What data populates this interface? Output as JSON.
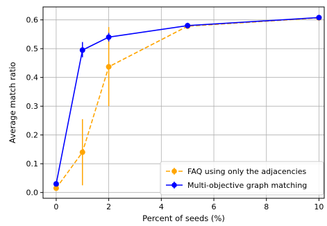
{
  "chart_data": {
    "type": "line",
    "title": "",
    "xlabel": "Percent of seeds (%)",
    "ylabel": "Average match ratio",
    "xlim": [
      -0.5,
      10.2
    ],
    "ylim": [
      -0.02,
      0.645
    ],
    "xticks": [
      0,
      2,
      4,
      6,
      8,
      10
    ],
    "yticks": [
      0.0,
      0.1,
      0.2,
      0.3,
      0.4,
      0.5,
      0.6
    ],
    "xtick_labels": [
      "0",
      "2",
      "4",
      "6",
      "8",
      "10"
    ],
    "ytick_labels": [
      "0.0",
      "0.1",
      "0.2",
      "0.3",
      "0.4",
      "0.5",
      "0.6"
    ],
    "grid": true,
    "legend_position": "bottom-right",
    "series": [
      {
        "name": "FAQ using only the adjacencies",
        "color": "#ffa500",
        "line_style": "dashed",
        "marker": "circle",
        "x": [
          0,
          1,
          2,
          5,
          10
        ],
        "y": [
          0.015,
          0.14,
          0.437,
          0.578,
          0.607
        ],
        "y_err_low": [
          0.008,
          0.025,
          0.3,
          0.572,
          0.604
        ],
        "y_err_high": [
          0.022,
          0.255,
          0.575,
          0.584,
          0.61
        ]
      },
      {
        "name": "Multi-objective graph matching",
        "color": "#0000ff",
        "line_style": "solid",
        "marker": "circle",
        "x": [
          0,
          1,
          2,
          5,
          10
        ],
        "y": [
          0.03,
          0.495,
          0.54,
          0.58,
          0.608
        ],
        "y_err_low": [
          0.024,
          0.47,
          0.525,
          0.57,
          0.6
        ],
        "y_err_high": [
          0.036,
          0.523,
          0.555,
          0.59,
          0.616
        ]
      }
    ]
  }
}
